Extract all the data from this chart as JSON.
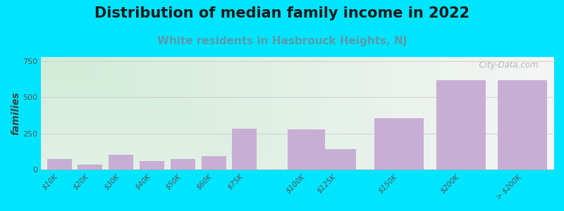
{
  "title": "Distribution of median family income in 2022",
  "subtitle": "White residents in Hasbrouck Heights, NJ",
  "ylabel": "families",
  "categories": [
    "$10K",
    "$20K",
    "$30K",
    "$40K",
    "$50K",
    "$60K",
    "$75K",
    "$100K",
    "$125K",
    "$150K",
    "$200K",
    "> $200K"
  ],
  "values": [
    75,
    35,
    105,
    60,
    75,
    95,
    285,
    280,
    140,
    355,
    620,
    620
  ],
  "bar_color": "#c8aed4",
  "bg_gradient_topleft": "#d0ecd8",
  "bg_gradient_right": "#f5f5f5",
  "bg_outer": "#00e5ff",
  "title_fontsize": 15,
  "subtitle_fontsize": 11,
  "subtitle_color": "#5a9aaa",
  "ylabel_fontsize": 10,
  "yticks": [
    0,
    250,
    500,
    750
  ],
  "ylim": [
    0,
    780
  ],
  "watermark": "  City-Data.com",
  "x_positions": [
    0,
    1,
    2,
    3,
    4,
    5,
    6,
    8,
    9,
    11,
    13,
    15
  ],
  "xlim": [
    -0.6,
    16
  ]
}
